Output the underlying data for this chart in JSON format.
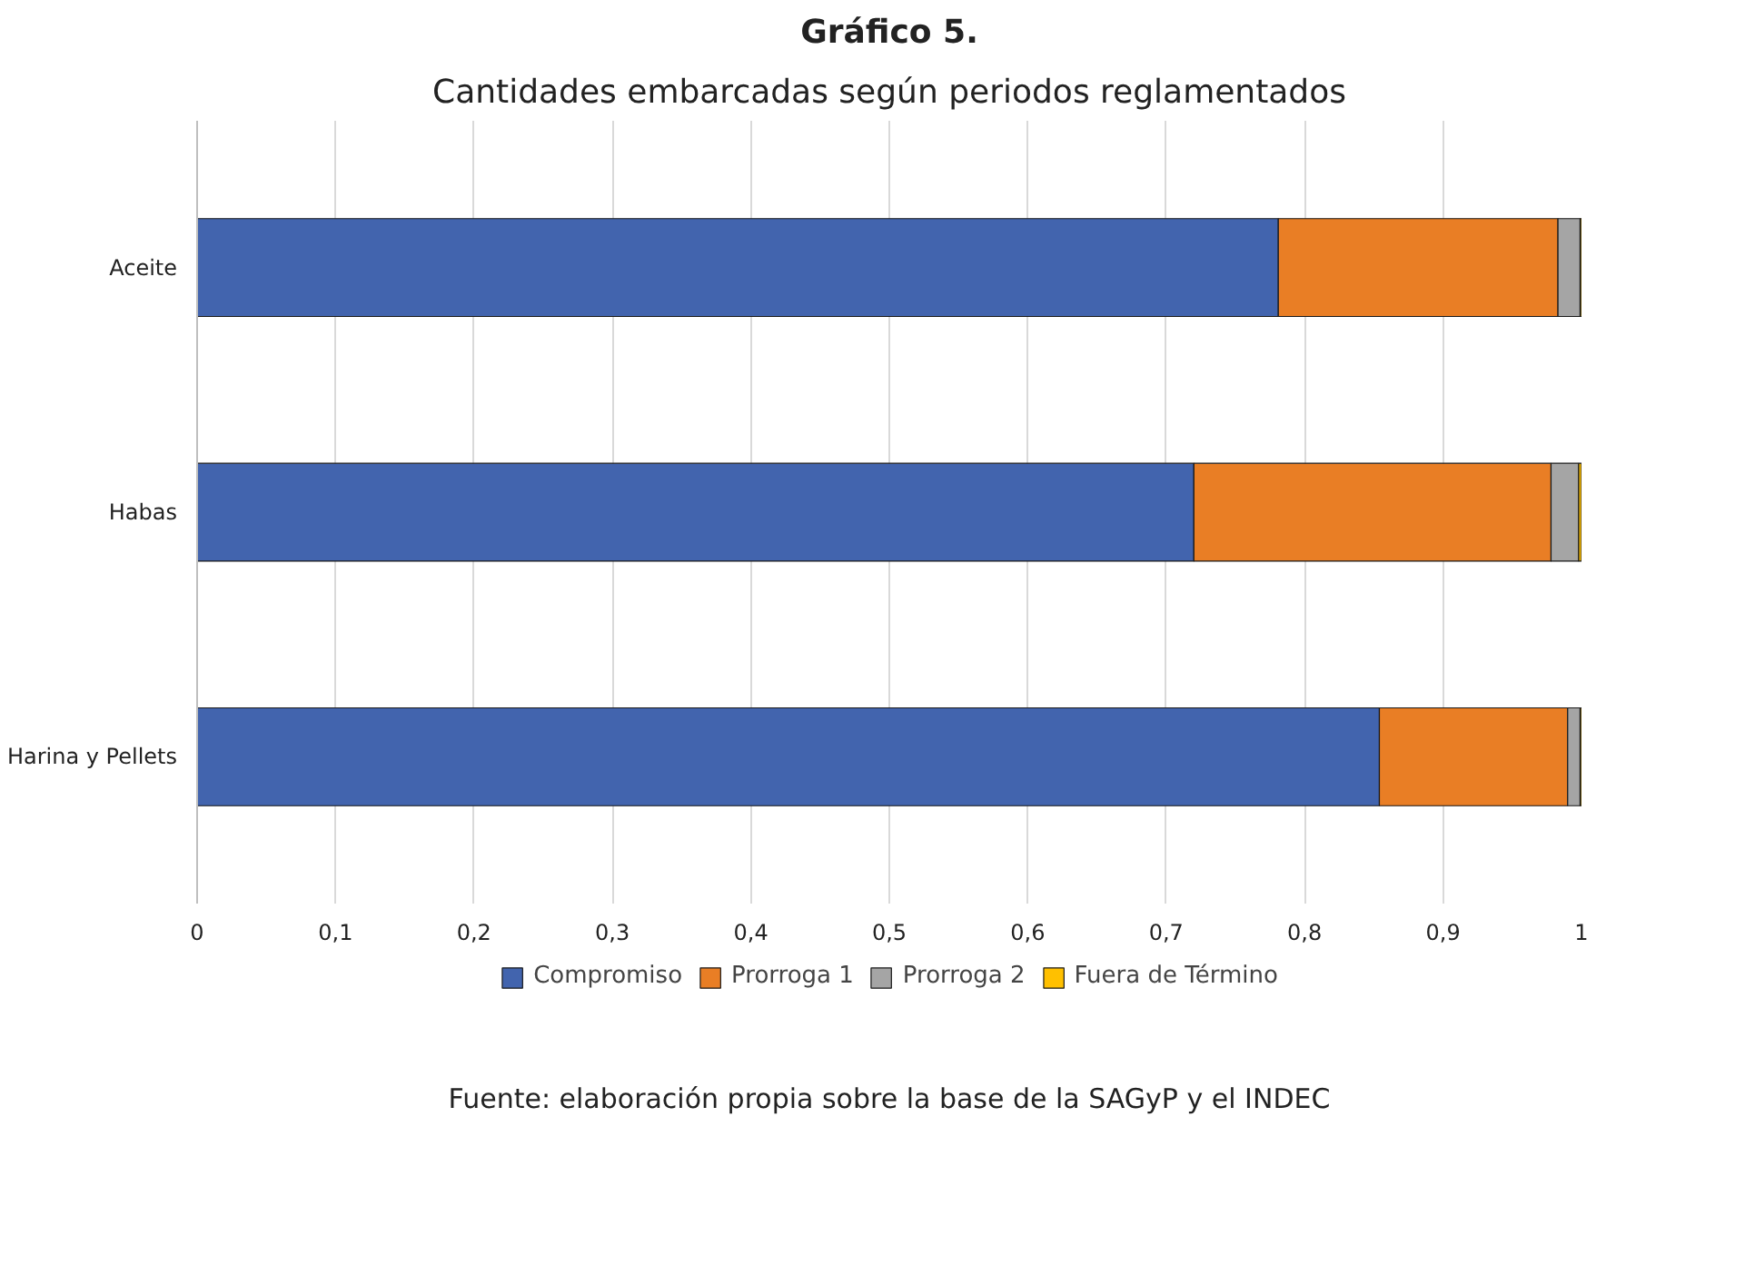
{
  "chart_data": {
    "type": "bar",
    "orientation": "horizontal",
    "stacked": true,
    "title": "Gráfico 5.",
    "subtitle": "Cantidades embarcadas según periodos reglamentados",
    "categories": [
      "Aceite",
      "Habas",
      "Harina y Pellets"
    ],
    "series": [
      {
        "name": "Compromiso",
        "color": "#4264ae",
        "values": [
          0.781,
          0.72,
          0.854
        ]
      },
      {
        "name": "Prorroga 1",
        "color": "#e97e25",
        "values": [
          0.202,
          0.258,
          0.136
        ]
      },
      {
        "name": "Prorroga 2",
        "color": "#a5a5a5",
        "values": [
          0.016,
          0.02,
          0.009
        ]
      },
      {
        "name": "Fuera de Término",
        "color": "#ffc000",
        "values": [
          0.001,
          0.002,
          0.001
        ]
      }
    ],
    "xlim": [
      0,
      1
    ],
    "xticks": [
      0,
      {
        "value": 0.1,
        "label": "0,1"
      },
      {
        "value": 0.2,
        "label": "0,2"
      },
      {
        "value": 0.3,
        "label": "0,3"
      },
      {
        "value": 0.4,
        "label": "0,4"
      },
      {
        "value": 0.5,
        "label": "0,5"
      },
      {
        "value": 0.6,
        "label": "0,6"
      },
      {
        "value": 0.7,
        "label": "0,7"
      },
      {
        "value": 0.8,
        "label": "0,8"
      },
      {
        "value": 0.9,
        "label": "0,9"
      },
      1
    ],
    "grid": "x",
    "legend": "bottom",
    "annotations": [
      "Fuente: elaboración propia sobre la base de la SAGyP y el INDEC"
    ]
  }
}
